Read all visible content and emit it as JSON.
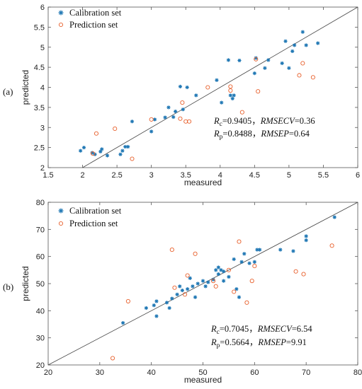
{
  "chart_data": [
    {
      "type": "scatter",
      "panel_label": "(a)",
      "xlabel": "measured",
      "ylabel": "predicted",
      "xlim": [
        1.5,
        6
      ],
      "ylim": [
        2,
        6
      ],
      "xticks": [
        1.5,
        2,
        2.5,
        3,
        3.5,
        4,
        4.5,
        5,
        5.5,
        6
      ],
      "yticks": [
        2,
        2.5,
        3,
        3.5,
        4,
        4.5,
        5,
        5.5,
        6
      ],
      "xtick_labels": [
        "1.5",
        "2",
        "2.5",
        "3",
        "3.5",
        "4",
        "4.5",
        "5",
        "5.5",
        "6"
      ],
      "ytick_labels": [
        "2",
        "2.5",
        "3",
        "3.5",
        "4",
        "4.5",
        "5",
        "5.5",
        "6"
      ],
      "legend_position": "top-left",
      "reference_line": "y=x",
      "series": [
        {
          "name": "Calibration set",
          "marker": "asterisk",
          "color": "#1f77b4",
          "points": [
            [
              1.97,
              2.42
            ],
            [
              2.02,
              2.5
            ],
            [
              2.14,
              2.37
            ],
            [
              2.18,
              2.33
            ],
            [
              2.26,
              2.4
            ],
            [
              2.28,
              2.46
            ],
            [
              2.36,
              2.3
            ],
            [
              2.55,
              2.33
            ],
            [
              2.58,
              2.42
            ],
            [
              2.62,
              2.52
            ],
            [
              2.66,
              2.52
            ],
            [
              2.72,
              3.15
            ],
            [
              3.0,
              2.9
            ],
            [
              3.05,
              3.2
            ],
            [
              3.2,
              3.25
            ],
            [
              3.25,
              3.5
            ],
            [
              3.32,
              3.26
            ],
            [
              3.35,
              3.4
            ],
            [
              3.42,
              4.02
            ],
            [
              3.46,
              3.45
            ],
            [
              3.52,
              4.0
            ],
            [
              3.65,
              3.8
            ],
            [
              3.95,
              4.18
            ],
            [
              4.02,
              3.62
            ],
            [
              4.12,
              4.68
            ],
            [
              4.15,
              3.8
            ],
            [
              4.18,
              3.72
            ],
            [
              4.2,
              3.8
            ],
            [
              4.28,
              4.67
            ],
            [
              4.5,
              4.35
            ],
            [
              4.52,
              4.73
            ],
            [
              4.65,
              4.48
            ],
            [
              4.7,
              4.68
            ],
            [
              4.9,
              4.6
            ],
            [
              4.95,
              5.15
            ],
            [
              5.0,
              4.48
            ],
            [
              5.05,
              4.9
            ],
            [
              5.08,
              5.05
            ],
            [
              5.2,
              5.38
            ],
            [
              5.25,
              5.05
            ],
            [
              5.42,
              5.1
            ]
          ]
        },
        {
          "name": "Prediction set",
          "marker": "circle",
          "color": "#e8602c",
          "points": [
            [
              2.15,
              2.35
            ],
            [
              2.2,
              2.85
            ],
            [
              2.47,
              2.97
            ],
            [
              2.72,
              2.22
            ],
            [
              3.0,
              3.2
            ],
            [
              3.42,
              3.22
            ],
            [
              3.45,
              3.62
            ],
            [
              3.5,
              3.15
            ],
            [
              3.55,
              3.15
            ],
            [
              3.82,
              4.0
            ],
            [
              4.15,
              4.02
            ],
            [
              4.15,
              3.92
            ],
            [
              4.32,
              3.38
            ],
            [
              4.52,
              4.7
            ],
            [
              4.55,
              3.9
            ],
            [
              5.15,
              4.3
            ],
            [
              5.2,
              4.6
            ],
            [
              5.35,
              4.25
            ]
          ]
        }
      ],
      "annotations": [
        "Rc=0.9405，RMSECV=0.36",
        "Rp=0.8488，RMSEP=0.64"
      ]
    },
    {
      "type": "scatter",
      "panel_label": "(b)",
      "xlabel": "measured",
      "ylabel": "predicted",
      "xlim": [
        20,
        80
      ],
      "ylim": [
        20,
        80
      ],
      "xticks": [
        20,
        30,
        40,
        50,
        60,
        70,
        80
      ],
      "yticks": [
        20,
        30,
        40,
        50,
        60,
        70,
        80
      ],
      "xtick_labels": [
        "20",
        "30",
        "40",
        "50",
        "60",
        "70",
        "80"
      ],
      "ytick_labels": [
        "20",
        "30",
        "40",
        "50",
        "60",
        "70",
        "80"
      ],
      "legend_position": "top-left",
      "reference_line": "y=x",
      "series": [
        {
          "name": "Calibration set",
          "marker": "asterisk",
          "color": "#1f77b4",
          "points": [
            [
              34.5,
              35.5
            ],
            [
              39,
              41
            ],
            [
              40.5,
              42
            ],
            [
              41,
              38
            ],
            [
              41,
              43.5
            ],
            [
              43,
              43
            ],
            [
              43.5,
              41
            ],
            [
              44,
              44.5
            ],
            [
              45,
              46
            ],
            [
              45.5,
              49
            ],
            [
              46,
              47.5
            ],
            [
              47,
              48
            ],
            [
              47.5,
              52
            ],
            [
              48,
              49
            ],
            [
              48.5,
              45
            ],
            [
              49,
              50
            ],
            [
              50,
              51
            ],
            [
              50.5,
              49
            ],
            [
              51,
              50.5
            ],
            [
              52,
              51.5
            ],
            [
              52.5,
              55
            ],
            [
              53,
              56
            ],
            [
              53,
              53.5
            ],
            [
              53.5,
              55
            ],
            [
              54,
              54.5
            ],
            [
              54,
              51
            ],
            [
              55,
              52.5
            ],
            [
              56,
              59
            ],
            [
              56.5,
              48
            ],
            [
              57,
              45
            ],
            [
              57.5,
              58
            ],
            [
              58,
              61
            ],
            [
              59,
              57.5
            ],
            [
              60,
              58
            ],
            [
              60.5,
              62.5
            ],
            [
              61,
              62.5
            ],
            [
              65,
              62.5
            ],
            [
              67.5,
              62
            ],
            [
              70,
              66
            ],
            [
              70,
              67.5
            ],
            [
              75.5,
              74.5
            ]
          ]
        },
        {
          "name": "Prediction set",
          "marker": "circle",
          "color": "#e8602c",
          "points": [
            [
              32.5,
              22.5
            ],
            [
              35.5,
              43.5
            ],
            [
              44,
              62.5
            ],
            [
              44.5,
              48.5
            ],
            [
              46.5,
              46
            ],
            [
              47,
              53
            ],
            [
              48.5,
              61
            ],
            [
              52,
              51
            ],
            [
              52.5,
              49
            ],
            [
              55,
              55
            ],
            [
              56,
              47
            ],
            [
              57,
              65.5
            ],
            [
              58.5,
              43
            ],
            [
              59.5,
              51
            ],
            [
              60,
              56.5
            ],
            [
              68,
              54.5
            ],
            [
              69.5,
              53.5
            ],
            [
              75,
              64
            ]
          ]
        }
      ],
      "annotations": [
        "Rc=0.7045，RMSECV=6.54",
        "Rp=0.5664，RMSEP=9.91"
      ]
    }
  ],
  "stats_a": {
    "line1": {
      "r_main": "R",
      "r_sub": "c",
      "r_val": "=0.9405，",
      "metric": "RMSECV",
      "metric_val": "=0.36"
    },
    "line2": {
      "r_main": "R",
      "r_sub": "p",
      "r_val": "=0.8488，",
      "metric": "RMSEP",
      "metric_val": "=0.64"
    }
  },
  "stats_b": {
    "line1": {
      "r_main": "R",
      "r_sub": "c",
      "r_val": "=0.7045，",
      "metric": "RMSECV",
      "metric_val": "=6.54"
    },
    "line2": {
      "r_main": "R",
      "r_sub": "p",
      "r_val": "=0.5664，",
      "metric": "RMSEP",
      "metric_val": "=9.91"
    }
  }
}
